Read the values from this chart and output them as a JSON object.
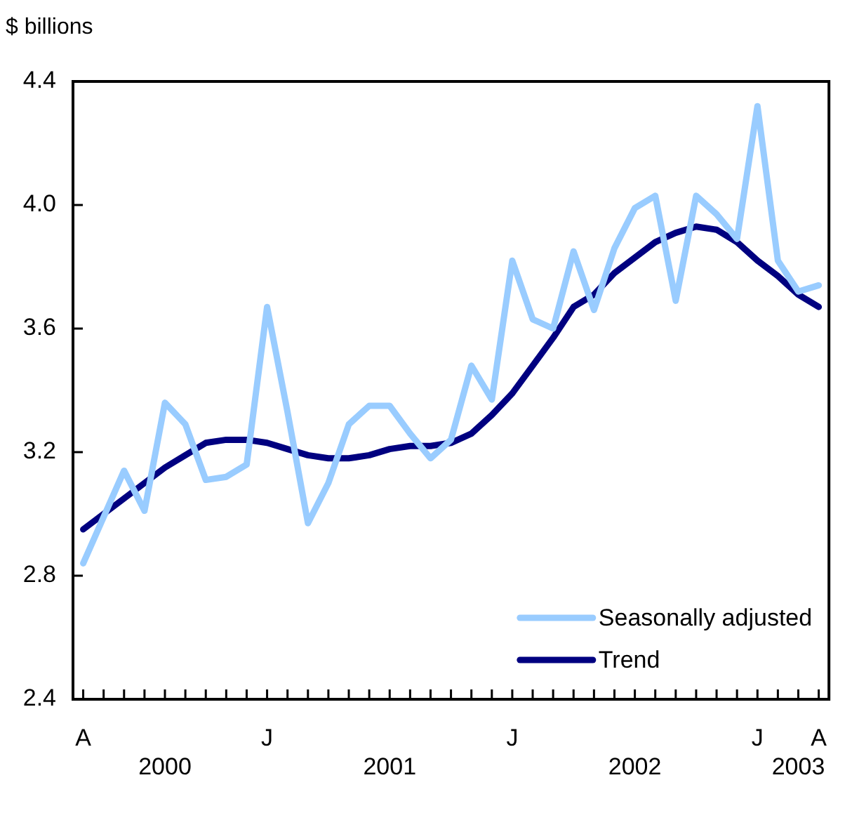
{
  "chart_data": {
    "type": "line",
    "ylabel": "$ billions",
    "categories": [
      "A",
      null,
      null,
      null,
      "\n2000",
      null,
      null,
      null,
      null,
      "J",
      null,
      null,
      null,
      null,
      null,
      "\n2001",
      null,
      null,
      null,
      null,
      null,
      "J",
      null,
      null,
      null,
      null,
      null,
      "\n2002",
      null,
      null,
      null,
      null,
      null,
      "J",
      null,
      "\n2003",
      "A"
    ],
    "series": [
      {
        "name": "Seasonally adjusted",
        "color": "#99ccff",
        "values": [
          2.84,
          2.99,
          3.14,
          3.01,
          3.36,
          3.29,
          3.11,
          3.12,
          3.16,
          3.67,
          3.33,
          2.97,
          3.1,
          3.29,
          3.35,
          3.35,
          3.26,
          3.18,
          3.24,
          3.48,
          3.37,
          3.82,
          3.63,
          3.6,
          3.85,
          3.66,
          3.86,
          3.99,
          4.03,
          3.69,
          4.03,
          3.97,
          3.89,
          4.32,
          3.82,
          3.72,
          3.74
        ]
      },
      {
        "name": "Trend",
        "color": "#000080",
        "values": [
          2.95,
          3.0,
          3.05,
          3.1,
          3.15,
          3.19,
          3.23,
          3.24,
          3.24,
          3.23,
          3.21,
          3.19,
          3.18,
          3.18,
          3.19,
          3.21,
          3.22,
          3.22,
          3.23,
          3.26,
          3.32,
          3.39,
          3.48,
          3.57,
          3.67,
          3.71,
          3.78,
          3.83,
          3.88,
          3.91,
          3.93,
          3.92,
          3.88,
          3.82,
          3.77,
          3.71,
          3.67
        ]
      }
    ],
    "ylim": [
      2.4,
      4.4
    ],
    "yticks": [
      2.4,
      2.8,
      3.2,
      3.6,
      {
        "value": 4.0,
        "label": "4.0"
      },
      4.4
    ],
    "grid": false,
    "legend": "bottom right",
    "marker": "none",
    "line_style": "solid"
  }
}
